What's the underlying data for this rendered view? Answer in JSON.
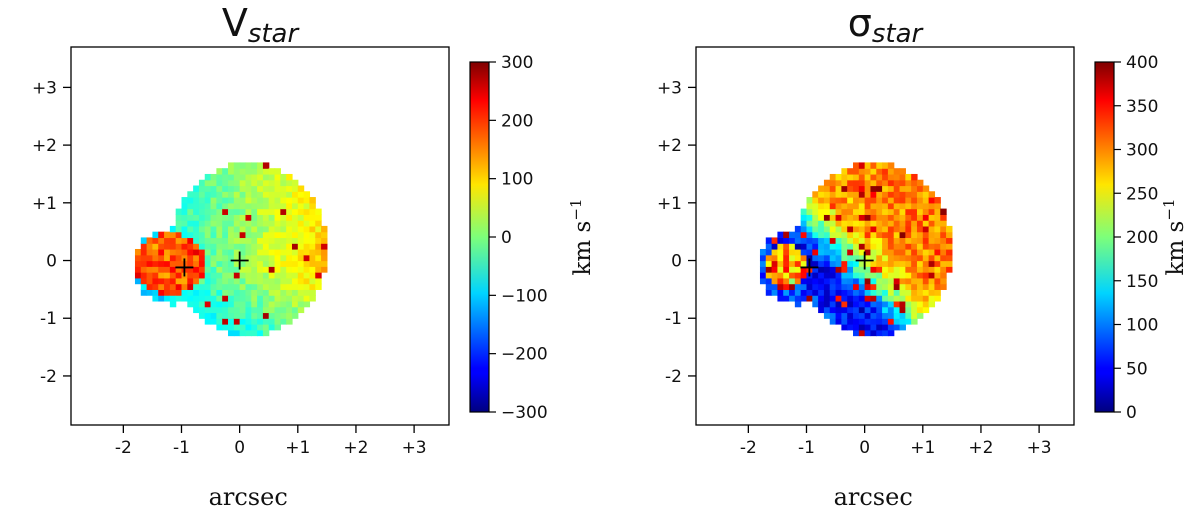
{
  "chart_data": [
    {
      "type": "heatmap",
      "title": "V",
      "title_sub": "star",
      "xlabel": "arcsec",
      "ylabel": "",
      "xlim": [
        -2.9,
        3.6
      ],
      "ylim": [
        -2.85,
        3.7
      ],
      "x_ticks": [
        {
          "value": -2,
          "label": "-2"
        },
        {
          "value": -1,
          "label": "-1"
        },
        {
          "value": 0,
          "label": "0"
        },
        {
          "value": 1,
          "label": "+1"
        },
        {
          "value": 2,
          "label": "+2"
        },
        {
          "value": 3,
          "label": "+3"
        }
      ],
      "y_ticks": [
        {
          "value": 3,
          "label": "+3"
        },
        {
          "value": 2,
          "label": "+2"
        },
        {
          "value": 1,
          "label": "+1"
        },
        {
          "value": 0,
          "label": "0"
        },
        {
          "value": -1,
          "label": "-1"
        },
        {
          "value": -2,
          "label": "-2"
        }
      ],
      "colorbar": {
        "colormap": "jet",
        "range": [
          -300,
          300
        ],
        "ticks": [
          {
            "value": 300,
            "label": "300"
          },
          {
            "value": 200,
            "label": "200"
          },
          {
            "value": 100,
            "label": "100"
          },
          {
            "value": 0,
            "label": "0"
          },
          {
            "value": -100,
            "label": "−100"
          },
          {
            "value": -200,
            "label": "−200"
          },
          {
            "value": -300,
            "label": "−300"
          }
        ],
        "label": "km s",
        "label_sup": "−1"
      },
      "markers": [
        {
          "x": -0.95,
          "y": -0.12,
          "symbol": "+"
        },
        {
          "x": 0.0,
          "y": 0.0,
          "symbol": "+"
        }
      ]
    },
    {
      "type": "heatmap",
      "title": "σ",
      "title_sub": "star",
      "xlabel": "arcsec",
      "ylabel": "",
      "xlim": [
        -2.9,
        3.6
      ],
      "ylim": [
        -2.85,
        3.7
      ],
      "x_ticks": [
        {
          "value": -2,
          "label": "-2"
        },
        {
          "value": -1,
          "label": "-1"
        },
        {
          "value": 0,
          "label": "0"
        },
        {
          "value": 1,
          "label": "+1"
        },
        {
          "value": 2,
          "label": "+2"
        },
        {
          "value": 3,
          "label": "+3"
        }
      ],
      "y_ticks": [
        {
          "value": 3,
          "label": "+3"
        },
        {
          "value": 2,
          "label": "+2"
        },
        {
          "value": 1,
          "label": "+1"
        },
        {
          "value": 0,
          "label": "0"
        },
        {
          "value": -1,
          "label": "-1"
        },
        {
          "value": -2,
          "label": "-2"
        }
      ],
      "colorbar": {
        "colormap": "jet",
        "range": [
          0,
          400
        ],
        "ticks": [
          {
            "value": 400,
            "label": "400"
          },
          {
            "value": 350,
            "label": "350"
          },
          {
            "value": 300,
            "label": "300"
          },
          {
            "value": 250,
            "label": "250"
          },
          {
            "value": 200,
            "label": "200"
          },
          {
            "value": 150,
            "label": "150"
          },
          {
            "value": 100,
            "label": "100"
          },
          {
            "value": 50,
            "label": "50"
          },
          {
            "value": 0,
            "label": "0"
          }
        ],
        "label": "km s",
        "label_sup": "−1"
      },
      "markers": [
        {
          "x": -0.95,
          "y": -0.12,
          "symbol": "+"
        },
        {
          "x": 0.0,
          "y": 0.0,
          "symbol": "+"
        }
      ]
    }
  ]
}
